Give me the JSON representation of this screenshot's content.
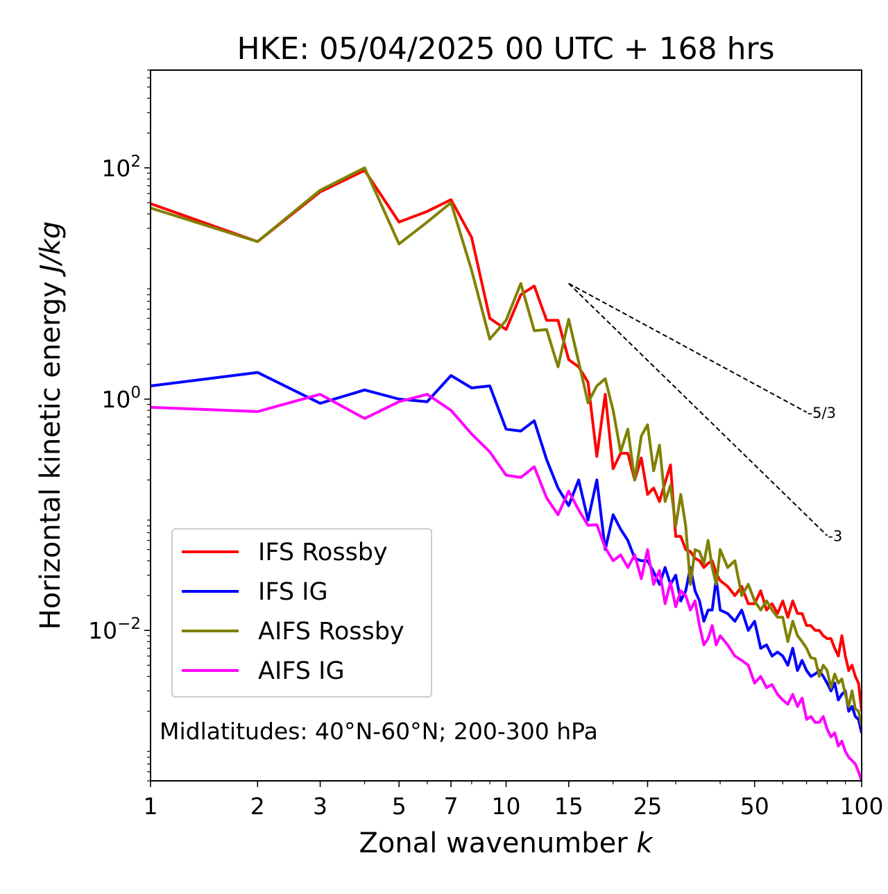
{
  "chart_data": {
    "type": "line",
    "title": "HKE: 05/04/2025 00 UTC + 168 hrs",
    "xlabel": "Zonal wavenumber",
    "xlabel_var": "k",
    "ylabel": "Horizontal kinetic energy",
    "ylabel_unit": "J/kg",
    "xscale": "log",
    "yscale": "log",
    "xlim": [
      1,
      100
    ],
    "ylim": [
      0.0005,
      700
    ],
    "xticks": [
      {
        "value": 1,
        "label": "1"
      },
      {
        "value": 2,
        "label": "2"
      },
      {
        "value": 3,
        "label": "3"
      },
      {
        "value": 5,
        "label": "5"
      },
      {
        "value": 7,
        "label": "7"
      },
      {
        "value": 10,
        "label": "10"
      },
      {
        "value": 15,
        "label": "15"
      },
      {
        "value": 25,
        "label": "25"
      },
      {
        "value": 50,
        "label": "50"
      },
      {
        "value": 100,
        "label": "100"
      }
    ],
    "yticks": [
      {
        "value": 100,
        "base": "10",
        "exp": "2"
      },
      {
        "value": 1,
        "base": "10",
        "exp": "0"
      },
      {
        "value": 0.01,
        "base": "10",
        "exp": "−2"
      }
    ],
    "grid": false,
    "legend_position": "lower-left",
    "annotation": "Midlatitudes: 40°N-60°N; 200-300 hPa",
    "reference_slopes": [
      {
        "label": "-5/3",
        "x": [
          15,
          70
        ],
        "y": [
          10.0,
          0.77
        ]
      },
      {
        "label": "-3",
        "x": [
          15,
          80
        ],
        "y": [
          10.0,
          0.066
        ]
      }
    ],
    "series": [
      {
        "name": "IFS Rossby",
        "color": "#ff0000",
        "x": [
          1,
          2,
          3,
          4,
          5,
          6,
          7,
          8,
          9,
          10,
          11,
          12,
          13,
          14,
          15,
          16,
          17,
          18,
          19,
          20,
          21,
          22,
          23,
          24,
          25,
          26,
          27,
          28,
          29,
          30,
          31,
          32,
          33,
          34,
          35,
          36,
          37,
          38,
          39,
          40,
          42,
          44,
          46,
          48,
          50,
          52,
          54,
          56,
          58,
          60,
          62,
          64,
          66,
          68,
          70,
          72,
          74,
          76,
          78,
          80,
          82,
          84,
          86,
          88,
          90,
          92,
          94,
          96,
          98,
          100
        ],
        "y": [
          49,
          23,
          62,
          95,
          34,
          42,
          53,
          25,
          5,
          4,
          8,
          9.5,
          4.8,
          4.8,
          2.2,
          1.9,
          1.4,
          0.32,
          1.1,
          0.25,
          0.34,
          0.34,
          0.2,
          0.31,
          0.15,
          0.17,
          0.13,
          0.19,
          0.27,
          0.065,
          0.065,
          0.05,
          0.048,
          0.042,
          0.04,
          0.035,
          0.038,
          0.04,
          0.031,
          0.027,
          0.024,
          0.02,
          0.024,
          0.017,
          0.017,
          0.022,
          0.015,
          0.017,
          0.014,
          0.018,
          0.013,
          0.018,
          0.014,
          0.014,
          0.011,
          0.011,
          0.01,
          0.01,
          0.009,
          0.0085,
          0.0085,
          0.007,
          0.006,
          0.009,
          0.006,
          0.0045,
          0.005,
          0.004,
          0.0035,
          0.002
        ]
      },
      {
        "name": "IFS IG",
        "color": "#0000ff",
        "x": [
          1,
          2,
          3,
          4,
          5,
          6,
          7,
          8,
          9,
          10,
          11,
          12,
          13,
          14,
          15,
          16,
          17,
          18,
          19,
          20,
          21,
          22,
          23,
          24,
          25,
          26,
          27,
          28,
          29,
          30,
          31,
          32,
          33,
          34,
          35,
          36,
          37,
          38,
          39,
          40,
          42,
          44,
          46,
          48,
          50,
          52,
          54,
          56,
          58,
          60,
          62,
          64,
          66,
          68,
          70,
          72,
          74,
          76,
          78,
          80,
          82,
          84,
          86,
          88,
          90,
          92,
          94,
          96,
          98,
          100
        ],
        "y": [
          1.3,
          1.7,
          0.92,
          1.2,
          1,
          0.95,
          1.6,
          1.25,
          1.3,
          0.55,
          0.53,
          0.65,
          0.3,
          0.17,
          0.12,
          0.2,
          0.09,
          0.2,
          0.05,
          0.1,
          0.075,
          0.06,
          0.042,
          0.04,
          0.04,
          0.032,
          0.025,
          0.035,
          0.025,
          0.03,
          0.018,
          0.022,
          0.035,
          0.022,
          0.018,
          0.012,
          0.015,
          0.015,
          0.028,
          0.015,
          0.014,
          0.012,
          0.015,
          0.01,
          0.012,
          0.007,
          0.0075,
          0.006,
          0.0065,
          0.006,
          0.005,
          0.007,
          0.0045,
          0.0055,
          0.0045,
          0.004,
          0.0042,
          0.0045,
          0.004,
          0.0035,
          0.003,
          0.0035,
          0.0025,
          0.0028,
          0.003,
          0.002,
          0.0022,
          0.0018,
          0.0017,
          0.0013
        ]
      },
      {
        "name": "AIFS Rossby",
        "color": "#808000",
        "x": [
          1,
          2,
          3,
          4,
          5,
          6,
          7,
          8,
          9,
          10,
          11,
          12,
          13,
          14,
          15,
          16,
          17,
          18,
          19,
          20,
          21,
          22,
          23,
          24,
          25,
          26,
          27,
          28,
          29,
          30,
          31,
          32,
          33,
          34,
          35,
          36,
          37,
          38,
          39,
          40,
          42,
          44,
          46,
          48,
          50,
          52,
          54,
          56,
          58,
          60,
          62,
          64,
          66,
          68,
          70,
          72,
          74,
          76,
          78,
          80,
          82,
          84,
          86,
          88,
          90,
          92,
          94,
          96,
          98,
          100
        ],
        "y": [
          45,
          23,
          64,
          100,
          22,
          34,
          50,
          13,
          3.3,
          4.8,
          10,
          3.9,
          4,
          1.9,
          4.9,
          2.1,
          0.93,
          1.3,
          1.5,
          0.8,
          0.35,
          0.55,
          0.2,
          0.48,
          0.6,
          0.24,
          0.4,
          0.13,
          0.18,
          0.08,
          0.15,
          0.08,
          0.025,
          0.05,
          0.048,
          0.038,
          0.06,
          0.035,
          0.025,
          0.05,
          0.035,
          0.04,
          0.02,
          0.025,
          0.018,
          0.015,
          0.018,
          0.015,
          0.013,
          0.013,
          0.008,
          0.012,
          0.009,
          0.008,
          0.007,
          0.0058,
          0.0057,
          0.004,
          0.005,
          0.0045,
          0.0032,
          0.0042,
          0.0035,
          0.0038,
          0.0028,
          0.0022,
          0.003,
          0.0021,
          0.002,
          0.0015
        ]
      },
      {
        "name": "AIFS IG",
        "color": "#ff00ff",
        "x": [
          1,
          2,
          3,
          4,
          5,
          6,
          7,
          8,
          9,
          10,
          11,
          12,
          13,
          14,
          15,
          16,
          17,
          18,
          19,
          20,
          21,
          22,
          23,
          24,
          25,
          26,
          27,
          28,
          29,
          30,
          31,
          32,
          33,
          34,
          35,
          36,
          37,
          38,
          39,
          40,
          42,
          44,
          46,
          48,
          50,
          52,
          54,
          56,
          58,
          60,
          62,
          64,
          66,
          68,
          70,
          72,
          74,
          76,
          78,
          80,
          82,
          84,
          86,
          88,
          90,
          92,
          94,
          96,
          98,
          100
        ],
        "y": [
          0.85,
          0.78,
          1.1,
          0.68,
          0.95,
          1.1,
          0.8,
          0.5,
          0.35,
          0.22,
          0.21,
          0.26,
          0.14,
          0.1,
          0.16,
          0.11,
          0.081,
          0.082,
          0.052,
          0.04,
          0.045,
          0.035,
          0.045,
          0.028,
          0.05,
          0.025,
          0.033,
          0.017,
          0.026,
          0.016,
          0.022,
          0.02,
          0.015,
          0.018,
          0.011,
          0.0075,
          0.0085,
          0.011,
          0.0075,
          0.009,
          0.0075,
          0.006,
          0.0055,
          0.005,
          0.0035,
          0.004,
          0.0032,
          0.0034,
          0.0028,
          0.0025,
          0.0023,
          0.0028,
          0.0022,
          0.0026,
          0.0017,
          0.0018,
          0.0016,
          0.0016,
          0.0018,
          0.0014,
          0.0012,
          0.0013,
          0.001,
          0.0011,
          0.0009,
          0.0008,
          0.00075,
          0.0007,
          0.0006,
          0.0005
        ]
      }
    ]
  }
}
